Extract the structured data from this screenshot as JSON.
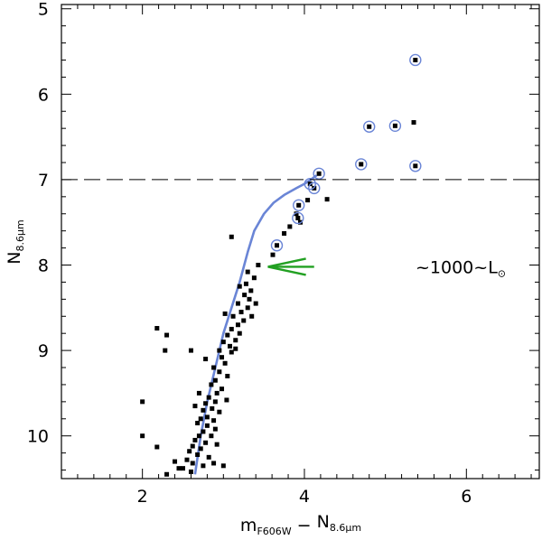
{
  "chart_data": {
    "type": "scatter",
    "title": "",
    "xlabel": {
      "main": "m",
      "main_sub": "F606W",
      "minus": "−",
      "second": "N",
      "second_sub": "8.6μm"
    },
    "ylabel": {
      "main": "N",
      "sub": "8.6μm"
    },
    "xlim": [
      1.0,
      6.9
    ],
    "ylim": [
      10.5,
      4.95
    ],
    "x_ticks": [
      2,
      4,
      6
    ],
    "y_ticks": [
      5,
      6,
      7,
      8,
      9,
      10
    ],
    "x_tick_labels": [
      "2",
      "4",
      "6"
    ],
    "y_tick_labels": [
      "5",
      "6",
      "7",
      "8",
      "9",
      "10"
    ],
    "reference_line": {
      "style": "dashed",
      "y": 7.0
    },
    "annotation": {
      "text": "~1000~L",
      "sub": "⊙",
      "arrow_from": [
        4.12,
        8.02
      ],
      "arrow_to": [
        3.55,
        8.02
      ],
      "color": "#22a022"
    },
    "fit_curve": {
      "color": "#6a85d6",
      "x": [
        2.65,
        2.72,
        2.8,
        2.9,
        3.0,
        3.1,
        3.2,
        3.3,
        3.38,
        3.5,
        3.62,
        3.75,
        3.9,
        4.0,
        4.08,
        4.15
      ],
      "y": [
        10.45,
        10.0,
        9.6,
        9.2,
        8.8,
        8.5,
        8.2,
        7.85,
        7.6,
        7.4,
        7.27,
        7.18,
        7.1,
        7.05,
        7.0,
        6.95
      ]
    },
    "circled_points": {
      "color": "#6a85d6",
      "points": [
        [
          5.37,
          5.6
        ],
        [
          4.8,
          6.38
        ],
        [
          5.12,
          6.37
        ],
        [
          4.7,
          6.82
        ],
        [
          5.37,
          6.84
        ],
        [
          4.18,
          6.93
        ],
        [
          4.07,
          7.05
        ],
        [
          4.12,
          7.1
        ],
        [
          3.93,
          7.3
        ],
        [
          3.92,
          7.45
        ],
        [
          3.66,
          7.77
        ]
      ]
    },
    "points": [
      [
        5.35,
        6.33
      ],
      [
        4.28,
        7.23
      ],
      [
        4.04,
        7.24
      ],
      [
        3.9,
        7.4
      ],
      [
        3.95,
        7.5
      ],
      [
        3.82,
        7.55
      ],
      [
        3.75,
        7.63
      ],
      [
        3.61,
        7.88
      ],
      [
        3.1,
        7.67
      ],
      [
        3.43,
        8.0
      ],
      [
        3.3,
        8.08
      ],
      [
        3.38,
        8.15
      ],
      [
        3.28,
        8.22
      ],
      [
        3.34,
        8.3
      ],
      [
        3.2,
        8.25
      ],
      [
        3.26,
        8.35
      ],
      [
        3.32,
        8.4
      ],
      [
        3.18,
        8.45
      ],
      [
        3.3,
        8.5
      ],
      [
        3.22,
        8.55
      ],
      [
        3.35,
        8.6
      ],
      [
        3.12,
        8.6
      ],
      [
        3.25,
        8.65
      ],
      [
        3.18,
        8.7
      ],
      [
        3.1,
        8.75
      ],
      [
        3.2,
        8.8
      ],
      [
        3.05,
        8.82
      ],
      [
        3.15,
        8.88
      ],
      [
        3.0,
        8.9
      ],
      [
        3.08,
        8.95
      ],
      [
        2.95,
        9.0
      ],
      [
        3.1,
        9.02
      ],
      [
        2.98,
        9.08
      ],
      [
        3.02,
        9.15
      ],
      [
        2.88,
        9.2
      ],
      [
        2.95,
        9.25
      ],
      [
        3.05,
        9.3
      ],
      [
        2.9,
        9.35
      ],
      [
        2.85,
        9.4
      ],
      [
        2.98,
        9.45
      ],
      [
        2.92,
        9.5
      ],
      [
        2.82,
        9.55
      ],
      [
        2.9,
        9.6
      ],
      [
        2.78,
        9.62
      ],
      [
        2.86,
        9.68
      ],
      [
        2.75,
        9.7
      ],
      [
        2.95,
        9.72
      ],
      [
        2.8,
        9.78
      ],
      [
        2.72,
        9.8
      ],
      [
        2.88,
        9.82
      ],
      [
        2.68,
        9.85
      ],
      [
        2.8,
        9.88
      ],
      [
        2.9,
        9.92
      ],
      [
        2.75,
        9.95
      ],
      [
        2.7,
        10.0
      ],
      [
        2.85,
        10.0
      ],
      [
        2.65,
        10.05
      ],
      [
        2.78,
        10.08
      ],
      [
        2.92,
        10.1
      ],
      [
        2.62,
        10.12
      ],
      [
        2.72,
        10.15
      ],
      [
        2.58,
        10.18
      ],
      [
        2.68,
        10.22
      ],
      [
        2.82,
        10.25
      ],
      [
        2.55,
        10.28
      ],
      [
        2.62,
        10.32
      ],
      [
        2.75,
        10.35
      ],
      [
        2.5,
        10.38
      ],
      [
        2.6,
        10.42
      ],
      [
        2.88,
        10.32
      ],
      [
        3.0,
        10.35
      ],
      [
        2.3,
        10.45
      ],
      [
        2.4,
        10.3
      ],
      [
        2.45,
        10.38
      ],
      [
        2.65,
        9.65
      ],
      [
        2.7,
        9.5
      ],
      [
        2.78,
        9.1
      ],
      [
        2.6,
        9.0
      ],
      [
        2.28,
        9.0
      ],
      [
        2.18,
        8.74
      ],
      [
        2.3,
        8.82
      ],
      [
        2.0,
        9.6
      ],
      [
        2.0,
        10.0
      ],
      [
        2.18,
        10.13
      ],
      [
        3.02,
        8.57
      ],
      [
        3.4,
        8.45
      ],
      [
        3.15,
        8.98
      ],
      [
        3.04,
        9.58
      ]
    ]
  }
}
